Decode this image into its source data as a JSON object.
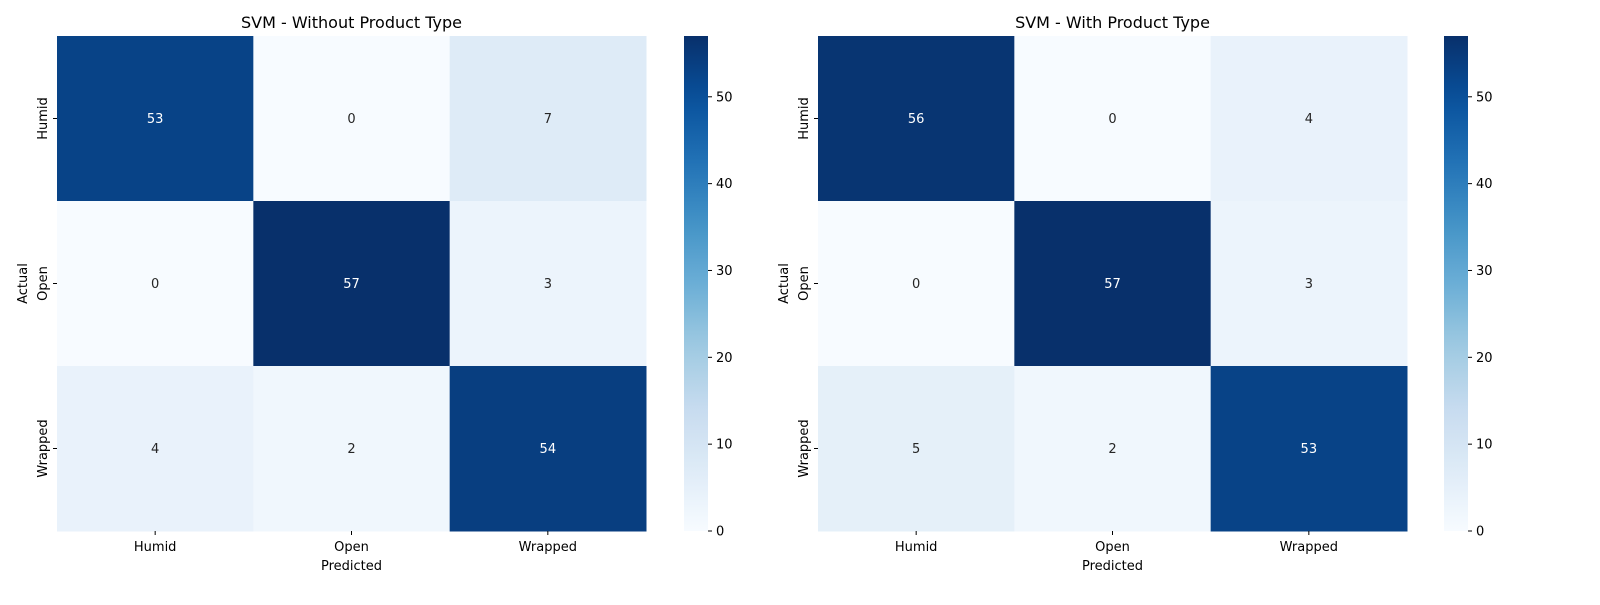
{
  "chart_data": [
    {
      "type": "heatmap",
      "title": "SVM - Without Product Type",
      "xlabel": "Predicted",
      "ylabel": "Actual",
      "x_categories": [
        "Humid",
        "Open",
        "Wrapped"
      ],
      "y_categories": [
        "Humid",
        "Open",
        "Wrapped"
      ],
      "values": [
        [
          53,
          0,
          7
        ],
        [
          0,
          57,
          3
        ],
        [
          4,
          2,
          54
        ]
      ],
      "colorbar": {
        "range": [
          0,
          57
        ],
        "ticks": [
          0,
          10,
          20,
          30,
          40,
          50
        ]
      }
    },
    {
      "type": "heatmap",
      "title": "SVM - With Product Type",
      "xlabel": "Predicted",
      "ylabel": "Actual",
      "x_categories": [
        "Humid",
        "Open",
        "Wrapped"
      ],
      "y_categories": [
        "Humid",
        "Open",
        "Wrapped"
      ],
      "values": [
        [
          56,
          0,
          4
        ],
        [
          0,
          57,
          3
        ],
        [
          5,
          2,
          53
        ]
      ],
      "colorbar": {
        "range": [
          0,
          57
        ],
        "ticks": [
          0,
          10,
          20,
          30,
          40,
          50
        ]
      }
    }
  ],
  "colors": {
    "colormap": "Blues",
    "low": "#f7fbff",
    "high": "#08306b",
    "text_on_dark": "#ffffff",
    "text_on_light": "#262626"
  }
}
